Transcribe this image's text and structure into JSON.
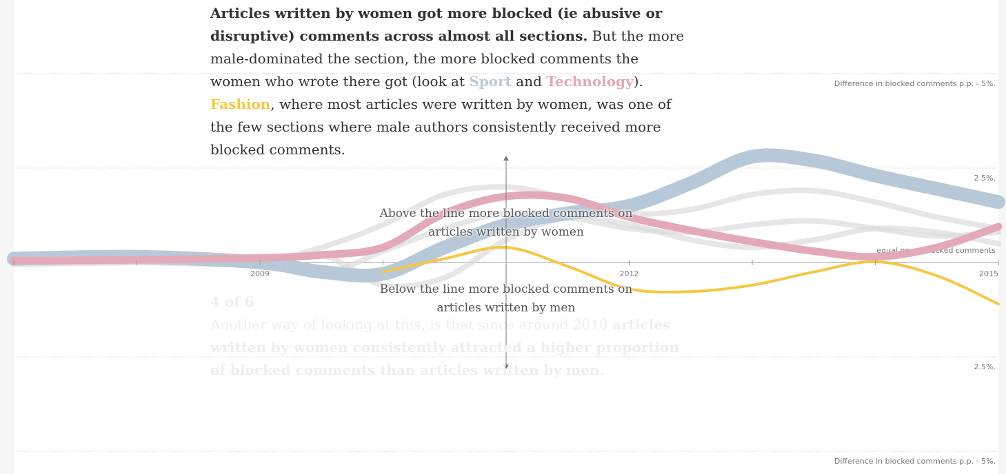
{
  "story": {
    "lead_bold": "Articles written by women got more blocked (ie abusive or disruptive) comments across almost all sections.",
    "lead_1": " But the more male-dominated the section, the more blocked comments the women who wrote there got (look at ",
    "lead_2": " and ",
    "lead_3": "). ",
    "lead_4": ", where most articles were written by women, was one of the few sections where male authors consistently received more blocked comments.",
    "next_step": "4 of 6",
    "next_text": "Another way of looking at this, is that since around 2010 ",
    "next_bold": "articles written by women consistently attracted a higher proportion of blocked comments than articles written by men."
  },
  "chart_data": {
    "type": "line",
    "annotations": [
      "Above the line more blocked comments on articles written by women",
      "Below the line more blocked comments on articles written by men"
    ],
    "x": [
      2007,
      2008,
      2009,
      2009.5,
      2010,
      2010.5,
      2011,
      2011.5,
      2012,
      2012.5,
      2013,
      2013.5,
      2014,
      2014.5,
      2015
    ],
    "xlim": [
      2007,
      2015
    ],
    "xticks": [
      {
        "value": 2007,
        "label": null
      },
      {
        "value": 2008,
        "label": null
      },
      2009,
      {
        "value": 2010,
        "label": null
      },
      {
        "value": 2011,
        "label": null
      },
      2012,
      {
        "value": 2013,
        "label": null
      },
      {
        "value": 2014,
        "label": null
      },
      2015
    ],
    "ylim": [
      -5.6,
      6.95
    ],
    "yticks": [
      {
        "value": 5,
        "label": "Difference in blocked comments p.p. - 5%."
      },
      {
        "value": 2.5,
        "label": "2.5%."
      },
      {
        "value": 0,
        "label": "equal no. of blocked comments"
      },
      {
        "value": -2.5,
        "label": "2.5%."
      },
      {
        "value": -5,
        "label": "Difference in blocked comments p.p. - 5%."
      }
    ],
    "grid": true,
    "series": [
      {
        "color": "#dcdcdc",
        "values": [
          0,
          0,
          0.05,
          0.4,
          1.0,
          1.8,
          2.0,
          1.7,
          1.3,
          1.4,
          1.8,
          1.9,
          1.6,
          1.2,
          0.9
        ]
      },
      {
        "color": "#dcdcdc",
        "values": [
          -0.05,
          0,
          0,
          -0.3,
          0.3,
          0.9,
          1.3,
          1.2,
          0.9,
          0.8,
          1.0,
          1.1,
          0.9,
          0.7,
          0.8
        ]
      },
      {
        "color": "#dcdcdc",
        "values": [
          0,
          0,
          -0.05,
          0.2,
          -0.6,
          -0.4,
          0.6,
          1.2,
          1.0,
          0.6,
          0.4,
          0.6,
          0.9,
          0.8,
          0.5
        ]
      },
      {
        "name": "Sport",
        "color": "#b7c9d8",
        "values": [
          0.1,
          0.15,
          0,
          -0.25,
          -0.3,
          0.4,
          1.0,
          1.3,
          1.5,
          2.1,
          2.8,
          2.7,
          2.3,
          1.95,
          1.6
        ]
      },
      {
        "name": "Technology",
        "color": "#e3a9b7",
        "values": [
          0.05,
          0.07,
          0.12,
          0.2,
          0.4,
          1.3,
          1.75,
          1.7,
          1.2,
          0.85,
          0.55,
          0.3,
          0.15,
          0.4,
          0.95
        ]
      },
      {
        "name": "Fashion",
        "color": "#f6c744",
        "values": [
          null,
          null,
          null,
          null,
          -0.25,
          0.1,
          0.4,
          -0.1,
          -0.7,
          -0.77,
          -0.6,
          -0.25,
          0.02,
          -0.35,
          -1.1
        ]
      }
    ]
  }
}
